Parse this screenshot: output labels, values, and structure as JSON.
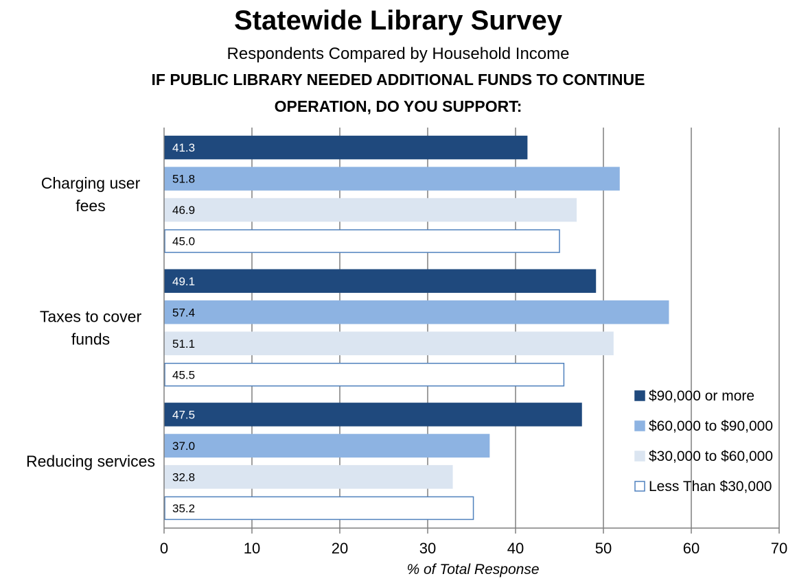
{
  "chart_data": {
    "type": "bar",
    "orientation": "horizontal",
    "title": "Statewide Library Survey",
    "subtitle": "Respondents Compared by Household Income",
    "question_lines": [
      "IF PUBLIC LIBRARY NEEDED ADDITIONAL FUNDS TO CONTINUE",
      "OPERATION, DO YOU SUPPORT:"
    ],
    "categories": [
      {
        "lines": [
          "Charging user",
          "fees"
        ]
      },
      {
        "lines": [
          "Taxes to cover",
          "funds"
        ]
      },
      {
        "lines": [
          "Reducing services"
        ]
      }
    ],
    "series": [
      {
        "name": "$90,000 or more",
        "color": "#1f497d",
        "border": "#1f497d",
        "label_color": "#ffffff",
        "values": [
          41.3,
          49.1,
          47.5
        ]
      },
      {
        "name": "$60,000 to $90,000",
        "color": "#8db3e2",
        "border": "#8db3e2",
        "label_color": "#000000",
        "values": [
          51.8,
          57.4,
          37.0
        ]
      },
      {
        "name": "$30,000 to $60,000",
        "color": "#dbe5f1",
        "border": "#dbe5f1",
        "label_color": "#000000",
        "values": [
          46.9,
          51.1,
          32.8
        ]
      },
      {
        "name": "Less Than $30,000",
        "color": "#ffffff",
        "border": "#4f81bd",
        "label_color": "#000000",
        "values": [
          45.0,
          45.5,
          35.2
        ]
      }
    ],
    "xlabel": "% of Total Response",
    "xlim": [
      0,
      70
    ],
    "xticks": [
      0,
      10,
      20,
      30,
      40,
      50,
      60,
      70
    ],
    "grid": true,
    "legend_position": "right"
  }
}
